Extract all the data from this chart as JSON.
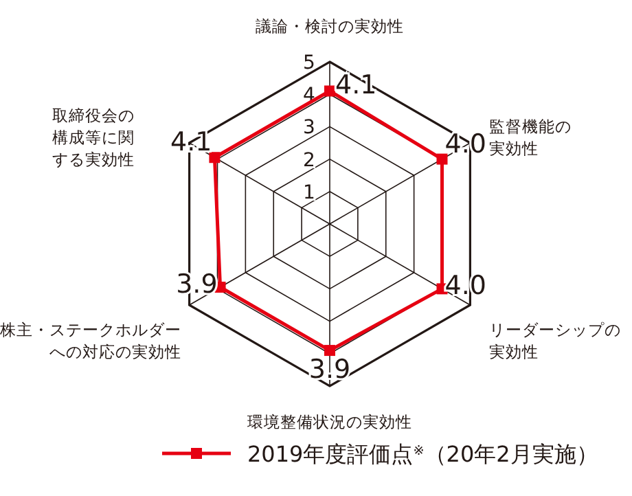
{
  "chart_data": {
    "type": "radar",
    "categories": [
      "議論・検討の実効性",
      "監督機能の実効性",
      "リーダーシップの実効性",
      "環境整備状況の実効性",
      "株主・ステークホルダーへの対応の実効性",
      "取締役会の構成等に関する実効性"
    ],
    "series": [
      {
        "name": "2019年度評価点$^{※}$（20年2月実施）",
        "color": "#e60012",
        "values": [
          4.1,
          4.0,
          4.0,
          3.9,
          3.9,
          4.1
        ],
        "value_labels": [
          "4.1",
          "4.0",
          "4.0",
          "3.9",
          "3.9",
          "4.1"
        ]
      }
    ],
    "ylim": [
      0,
      5
    ],
    "yticks": [
      1,
      2,
      3,
      4,
      5
    ],
    "grid": true,
    "legend": "bottom",
    "marker": "square"
  }
}
